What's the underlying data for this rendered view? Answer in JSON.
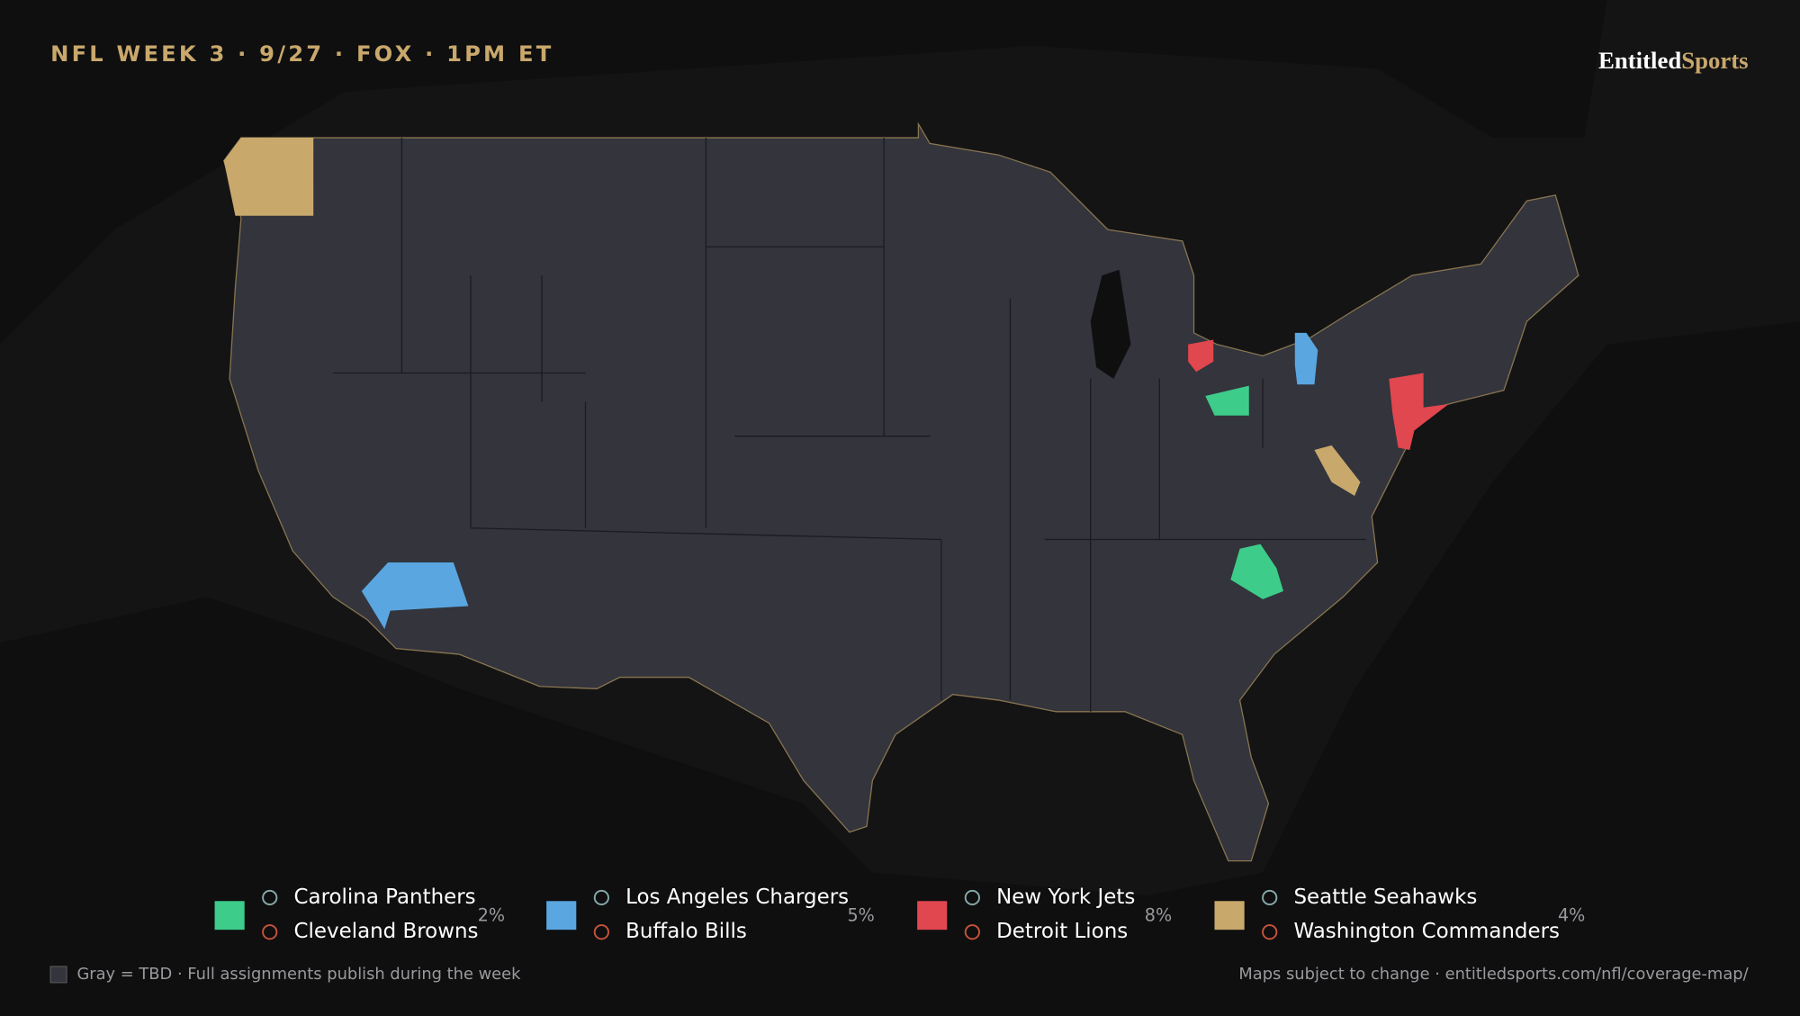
{
  "header": {
    "title": "NFL WEEK 3 · 9/27 · FOX · 1PM ET",
    "brand": [
      "Entitled",
      "Sports"
    ]
  },
  "legend": [
    {
      "color": "#3dcc8a",
      "teams": [
        "Carolina Panthers",
        "Cleveland Browns"
      ],
      "share": "2%"
    },
    {
      "color": "#5aa6e0",
      "teams": [
        "Los Angeles Chargers",
        "Buffalo Bills"
      ],
      "share": "5%"
    },
    {
      "color": "#e0474f",
      "teams": [
        "New York Jets",
        "Detroit Lions"
      ],
      "share": "8%"
    },
    {
      "color": "#c9a86c",
      "teams": [
        "Seattle Seahawks",
        "Washington Commanders"
      ],
      "share": "4%"
    }
  ],
  "footer": {
    "note": "Gray = TBD · Full assignments publish during the week",
    "source": "Maps subject to change · entitledsports.com/nfl/coverage-map/"
  }
}
